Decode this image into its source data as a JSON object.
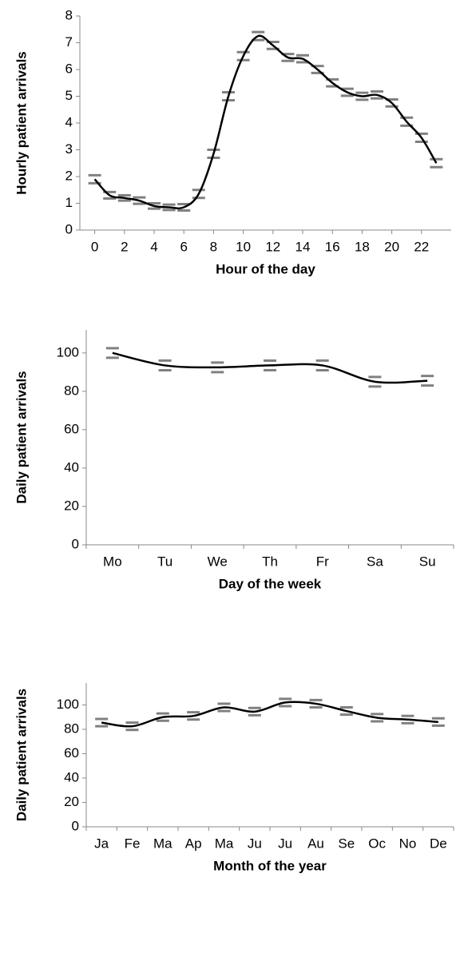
{
  "chart_data": [
    {
      "type": "line",
      "x_label": "Hour of the day",
      "y_label": "Hourly patient arrivals",
      "x": [
        0,
        1,
        2,
        3,
        4,
        5,
        6,
        7,
        8,
        9,
        10,
        11,
        12,
        13,
        14,
        15,
        16,
        17,
        18,
        19,
        20,
        21,
        22,
        23
      ],
      "xlim": [
        -1,
        24
      ],
      "xticks": [
        0,
        2,
        4,
        6,
        8,
        10,
        12,
        14,
        16,
        18,
        20,
        22
      ],
      "series": [
        {
          "color": "#000000",
          "error_color": "#808080",
          "values": [
            1.9,
            1.3,
            1.2,
            1.1,
            0.9,
            0.85,
            0.85,
            1.35,
            2.85,
            5.0,
            6.5,
            7.25,
            6.9,
            6.45,
            6.4,
            6.0,
            5.5,
            5.15,
            5.0,
            5.05,
            4.75,
            4.05,
            3.45,
            2.5
          ],
          "errors": [
            0.15,
            0.12,
            0.1,
            0.12,
            0.1,
            0.1,
            0.12,
            0.15,
            0.15,
            0.15,
            0.15,
            0.15,
            0.13,
            0.13,
            0.13,
            0.13,
            0.13,
            0.13,
            0.13,
            0.13,
            0.13,
            0.15,
            0.15,
            0.15
          ]
        }
      ],
      "ylim": [
        0,
        8
      ],
      "yticks": [
        0,
        1,
        2,
        3,
        4,
        5,
        6,
        7,
        8
      ]
    },
    {
      "type": "line",
      "x_label": "Day of the week",
      "y_label": "Daily patient arrivals",
      "categories": [
        "Mo",
        "Tu",
        "We",
        "Th",
        "Fr",
        "Sa",
        "Su"
      ],
      "series": [
        {
          "color": "#000000",
          "error_color": "#808080",
          "values": [
            100,
            93.5,
            92.5,
            93.5,
            93.5,
            85,
            85.5
          ],
          "errors": [
            2.5,
            2.5,
            2.5,
            2.5,
            2.5,
            2.5,
            2.5
          ]
        }
      ],
      "ylim": [
        0,
        112
      ],
      "yticks": [
        0,
        20,
        40,
        60,
        80,
        100
      ]
    },
    {
      "type": "line",
      "x_label": "Month of the year",
      "y_label": "Daily patient arrivals",
      "categories": [
        "Ja",
        "Fe",
        "Ma",
        "Ap",
        "Ma",
        "Ju",
        "Ju",
        "Au",
        "Se",
        "Oc",
        "No",
        "De"
      ],
      "series": [
        {
          "color": "#000000",
          "error_color": "#808080",
          "values": [
            85.5,
            82.5,
            90,
            91,
            98,
            94.5,
            102,
            101,
            95,
            89.5,
            88,
            86
          ],
          "errors": [
            3,
            3,
            3,
            3,
            3,
            3,
            3,
            3,
            3,
            3,
            3,
            3
          ]
        }
      ],
      "ylim": [
        0,
        118
      ],
      "yticks": [
        0,
        20,
        40,
        60,
        80,
        100
      ]
    }
  ]
}
